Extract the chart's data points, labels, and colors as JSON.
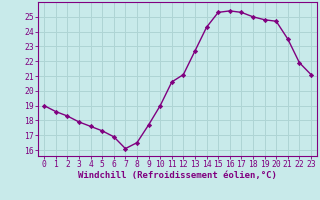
{
  "x": [
    0,
    1,
    2,
    3,
    4,
    5,
    6,
    7,
    8,
    9,
    10,
    11,
    12,
    13,
    14,
    15,
    16,
    17,
    18,
    19,
    20,
    21,
    22,
    23
  ],
  "y": [
    19.0,
    18.6,
    18.3,
    17.9,
    17.6,
    17.3,
    16.9,
    16.1,
    16.5,
    17.7,
    19.0,
    20.6,
    21.1,
    22.7,
    24.3,
    25.3,
    25.4,
    25.3,
    25.0,
    24.8,
    24.7,
    23.5,
    21.9,
    21.1
  ],
  "line_color": "#800080",
  "marker": "D",
  "marker_size": 2.2,
  "line_width": 1.0,
  "bg_color": "#c8eaea",
  "grid_color": "#aed4d4",
  "xlabel": "Windchill (Refroidissement éolien,°C)",
  "xlabel_fontsize": 6.5,
  "ylabel_ticks": [
    16,
    17,
    18,
    19,
    20,
    21,
    22,
    23,
    24,
    25
  ],
  "xlim": [
    -0.5,
    23.5
  ],
  "ylim": [
    15.6,
    26.0
  ],
  "xtick_labels": [
    "0",
    "1",
    "2",
    "3",
    "4",
    "5",
    "6",
    "7",
    "8",
    "9",
    "10",
    "11",
    "12",
    "13",
    "14",
    "15",
    "16",
    "17",
    "18",
    "19",
    "20",
    "21",
    "22",
    "23"
  ],
  "tick_fontsize": 5.8
}
